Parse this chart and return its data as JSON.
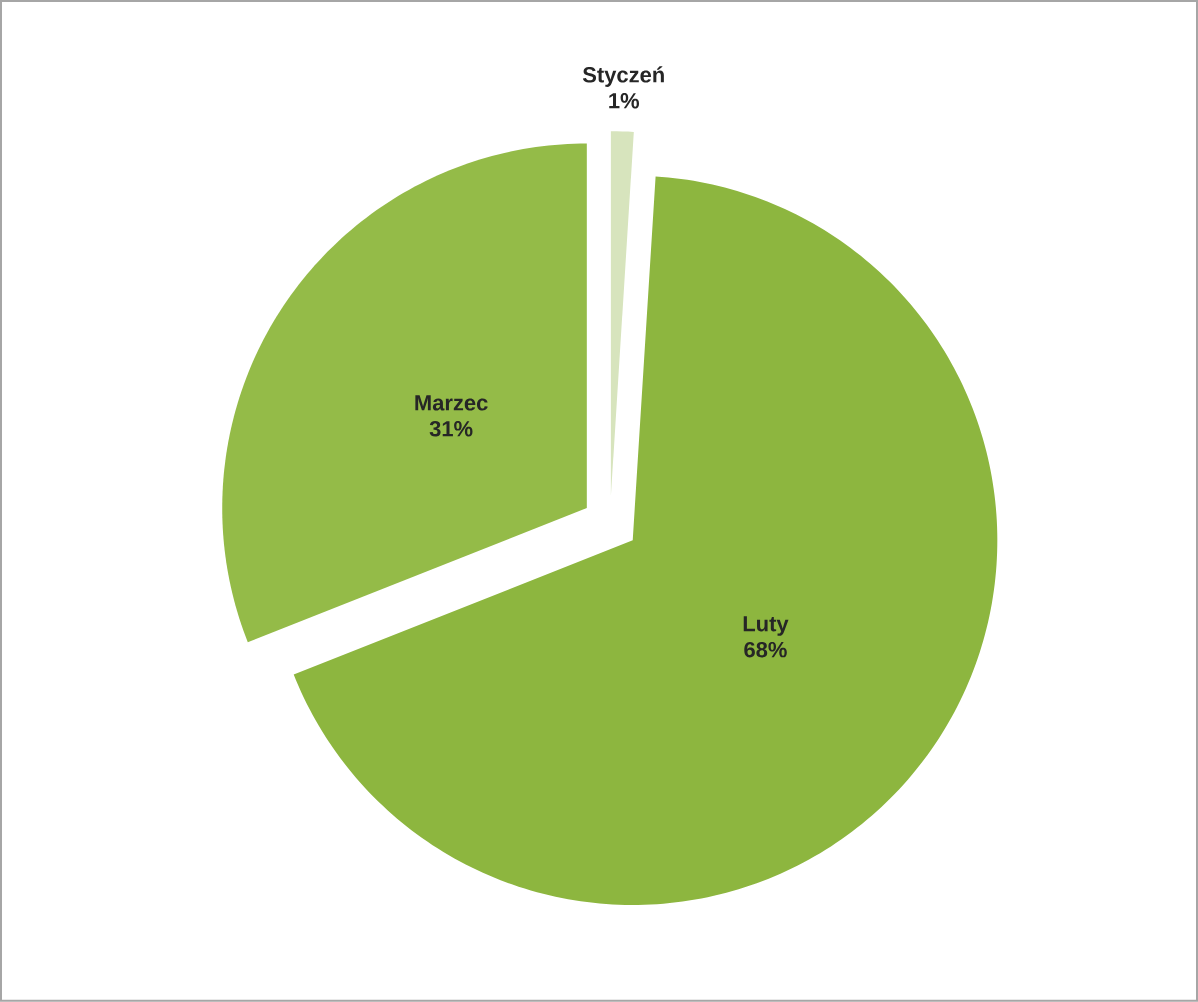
{
  "chart_data": {
    "type": "pie",
    "categories": [
      "Styczeń",
      "Luty",
      "Marzec"
    ],
    "values": [
      1,
      68,
      31
    ],
    "value_labels": [
      "1%",
      "68%",
      "31%"
    ],
    "colors": [
      "#d7e4bd",
      "#8db63f",
      "#94bb48"
    ]
  }
}
